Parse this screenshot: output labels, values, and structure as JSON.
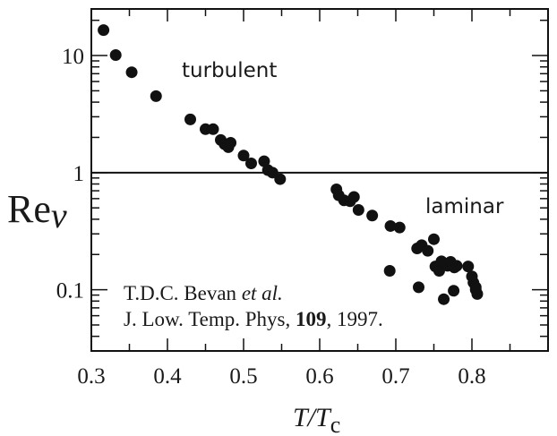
{
  "chart_data": {
    "type": "scatter",
    "xlabel": {
      "main": "T/T",
      "sub": "c"
    },
    "ylabel": {
      "main": "Re",
      "sub": "v"
    },
    "xlim": [
      0.3,
      0.9
    ],
    "ylim": [
      0.03,
      25
    ],
    "yscale": "log",
    "grid": false,
    "xticks": [
      {
        "value": 0.3,
        "label": "0.3"
      },
      {
        "value": 0.4,
        "label": "0.4"
      },
      {
        "value": 0.5,
        "label": "0.5"
      },
      {
        "value": 0.6,
        "label": "0.6"
      },
      {
        "value": 0.7,
        "label": "0.7"
      },
      {
        "value": 0.8,
        "label": "0.8"
      }
    ],
    "yticks": [
      {
        "value": 0.1,
        "label": "0.1"
      },
      {
        "value": 1,
        "label": "1"
      },
      {
        "value": 10,
        "label": "10"
      }
    ],
    "hline": 1,
    "annotations": {
      "turbulent": "turbulent",
      "laminar": "laminar",
      "citation_line1_prefix": "T.D.C. Bevan ",
      "citation_line1_italic": "et al.",
      "citation_line2_prefix": "J. Low. Temp. Phys, ",
      "citation_line2_bold": "109",
      "citation_line2_suffix": ", 1997."
    },
    "points": [
      [
        0.316,
        16.5
      ],
      [
        0.332,
        10.1
      ],
      [
        0.353,
        7.2
      ],
      [
        0.385,
        4.5
      ],
      [
        0.43,
        2.85
      ],
      [
        0.45,
        2.35
      ],
      [
        0.46,
        2.35
      ],
      [
        0.47,
        1.9
      ],
      [
        0.475,
        1.75
      ],
      [
        0.48,
        1.65
      ],
      [
        0.483,
        1.8
      ],
      [
        0.5,
        1.4
      ],
      [
        0.51,
        1.2
      ],
      [
        0.527,
        1.25
      ],
      [
        0.532,
        1.05
      ],
      [
        0.538,
        1.0
      ],
      [
        0.548,
        0.88
      ],
      [
        0.622,
        0.72
      ],
      [
        0.625,
        0.64
      ],
      [
        0.632,
        0.58
      ],
      [
        0.64,
        0.57
      ],
      [
        0.645,
        0.62
      ],
      [
        0.651,
        0.48
      ],
      [
        0.669,
        0.43
      ],
      [
        0.693,
        0.35
      ],
      [
        0.705,
        0.34
      ],
      [
        0.692,
        0.145
      ],
      [
        0.728,
        0.225
      ],
      [
        0.734,
        0.24
      ],
      [
        0.742,
        0.215
      ],
      [
        0.75,
        0.27
      ],
      [
        0.73,
        0.105
      ],
      [
        0.752,
        0.158
      ],
      [
        0.757,
        0.145
      ],
      [
        0.76,
        0.175
      ],
      [
        0.765,
        0.165
      ],
      [
        0.768,
        0.16
      ],
      [
        0.772,
        0.173
      ],
      [
        0.777,
        0.155
      ],
      [
        0.78,
        0.16
      ],
      [
        0.763,
        0.083
      ],
      [
        0.776,
        0.098
      ],
      [
        0.795,
        0.158
      ],
      [
        0.8,
        0.13
      ],
      [
        0.802,
        0.115
      ],
      [
        0.805,
        0.1
      ],
      [
        0.807,
        0.092
      ],
      [
        0.805,
        0.105
      ]
    ]
  }
}
